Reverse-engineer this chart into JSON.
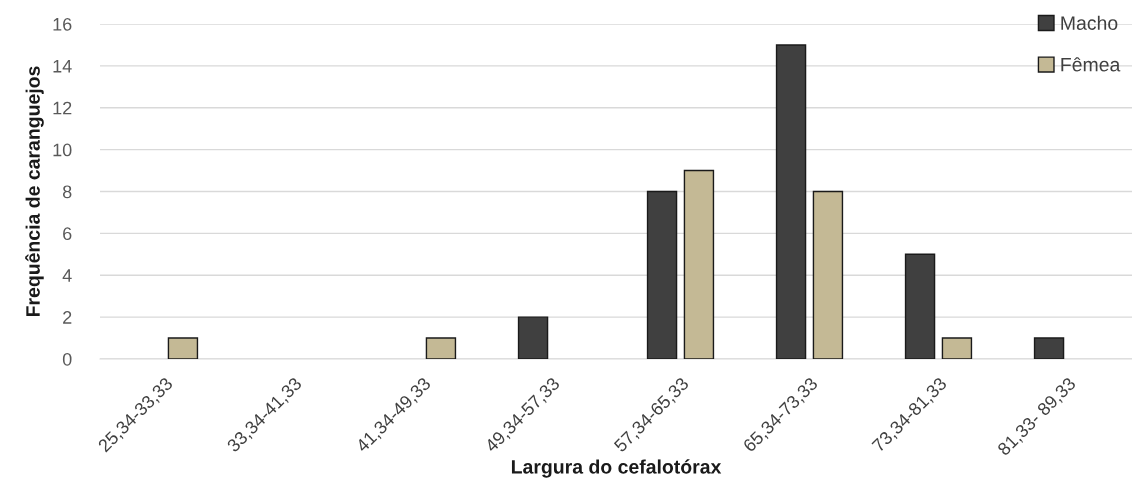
{
  "chart_data": {
    "type": "bar",
    "xlabel": "Largura do cefalotórax",
    "ylabel": "Frequência de caranguejos",
    "categories": [
      "25,34-33,33",
      "33,34-41,33",
      "41,34-49,33",
      "49,34-57,33",
      "57,34-65,33",
      "65,34-73,33",
      "73,34-81,33",
      "81,33- 89,33"
    ],
    "series": [
      {
        "name": "Macho",
        "color": "#404040",
        "values": [
          0,
          0,
          0,
          2,
          8,
          15,
          5,
          1
        ]
      },
      {
        "name": "Fêmea",
        "color": "#c4b995",
        "values": [
          1,
          0,
          1,
          0,
          9,
          8,
          1,
          0
        ]
      }
    ],
    "ylim": [
      0,
      16
    ],
    "yticks": [
      0,
      2,
      4,
      6,
      8,
      10,
      12,
      14,
      16
    ],
    "grid": "y",
    "legend": "top right"
  }
}
